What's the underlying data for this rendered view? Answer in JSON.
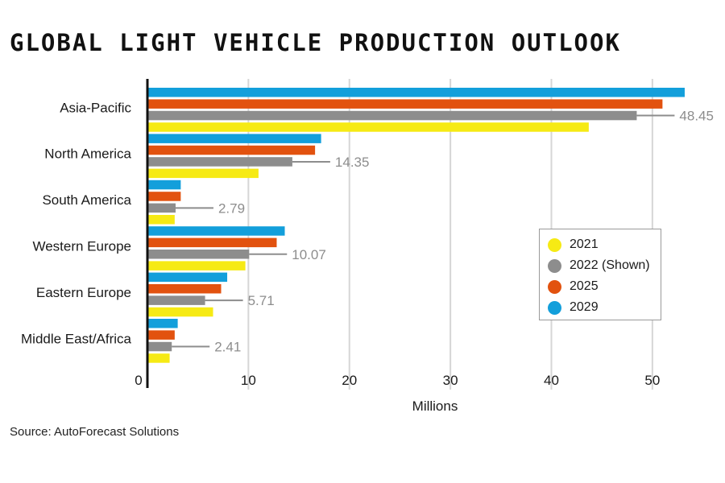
{
  "source": "Source: AutoForecast Solutions",
  "colors": {
    "2021": "#f6ea14",
    "2022": "#8d8d8d",
    "2025": "#e2520f",
    "2029": "#139fdb",
    "grid": "#d6d6d6",
    "axis": "#111111",
    "callout_text": "#8d8d8d"
  },
  "chart_data": {
    "type": "bar",
    "orientation": "horizontal",
    "title": "GLOBAL LIGHT VEHICLE PRODUCTION OUTLOOK",
    "xlabel": "Millions",
    "ylabel": "",
    "xlim": [
      0,
      54
    ],
    "xticks": [
      0,
      10,
      20,
      30,
      40,
      50
    ],
    "grid": true,
    "legend_position": "right",
    "categories": [
      "Asia-Pacific",
      "North America",
      "South America",
      "Western Europe",
      "Eastern Europe",
      "Middle East/Africa"
    ],
    "series": [
      {
        "name": "2021",
        "color_key": "2021",
        "values": [
          43.7,
          11.0,
          2.7,
          9.7,
          6.5,
          2.2
        ]
      },
      {
        "name": "2022 (Shown)",
        "color_key": "2022",
        "values": [
          48.45,
          14.35,
          2.79,
          10.07,
          5.71,
          2.41
        ],
        "data_labels": [
          "48.45",
          "14.35",
          "2.79",
          "10.07",
          "5.71",
          "2.41"
        ]
      },
      {
        "name": "2025",
        "color_key": "2025",
        "values": [
          51.0,
          16.6,
          3.3,
          12.8,
          7.3,
          2.7
        ]
      },
      {
        "name": "2029",
        "color_key": "2029",
        "values": [
          53.2,
          17.2,
          3.3,
          13.6,
          7.9,
          3.0
        ]
      }
    ],
    "legend_order": [
      "2021",
      "2022 (Shown)",
      "2025",
      "2029"
    ],
    "bar_order_top_to_bottom": [
      "2029",
      "2025",
      "2022 (Shown)",
      "2021"
    ]
  }
}
